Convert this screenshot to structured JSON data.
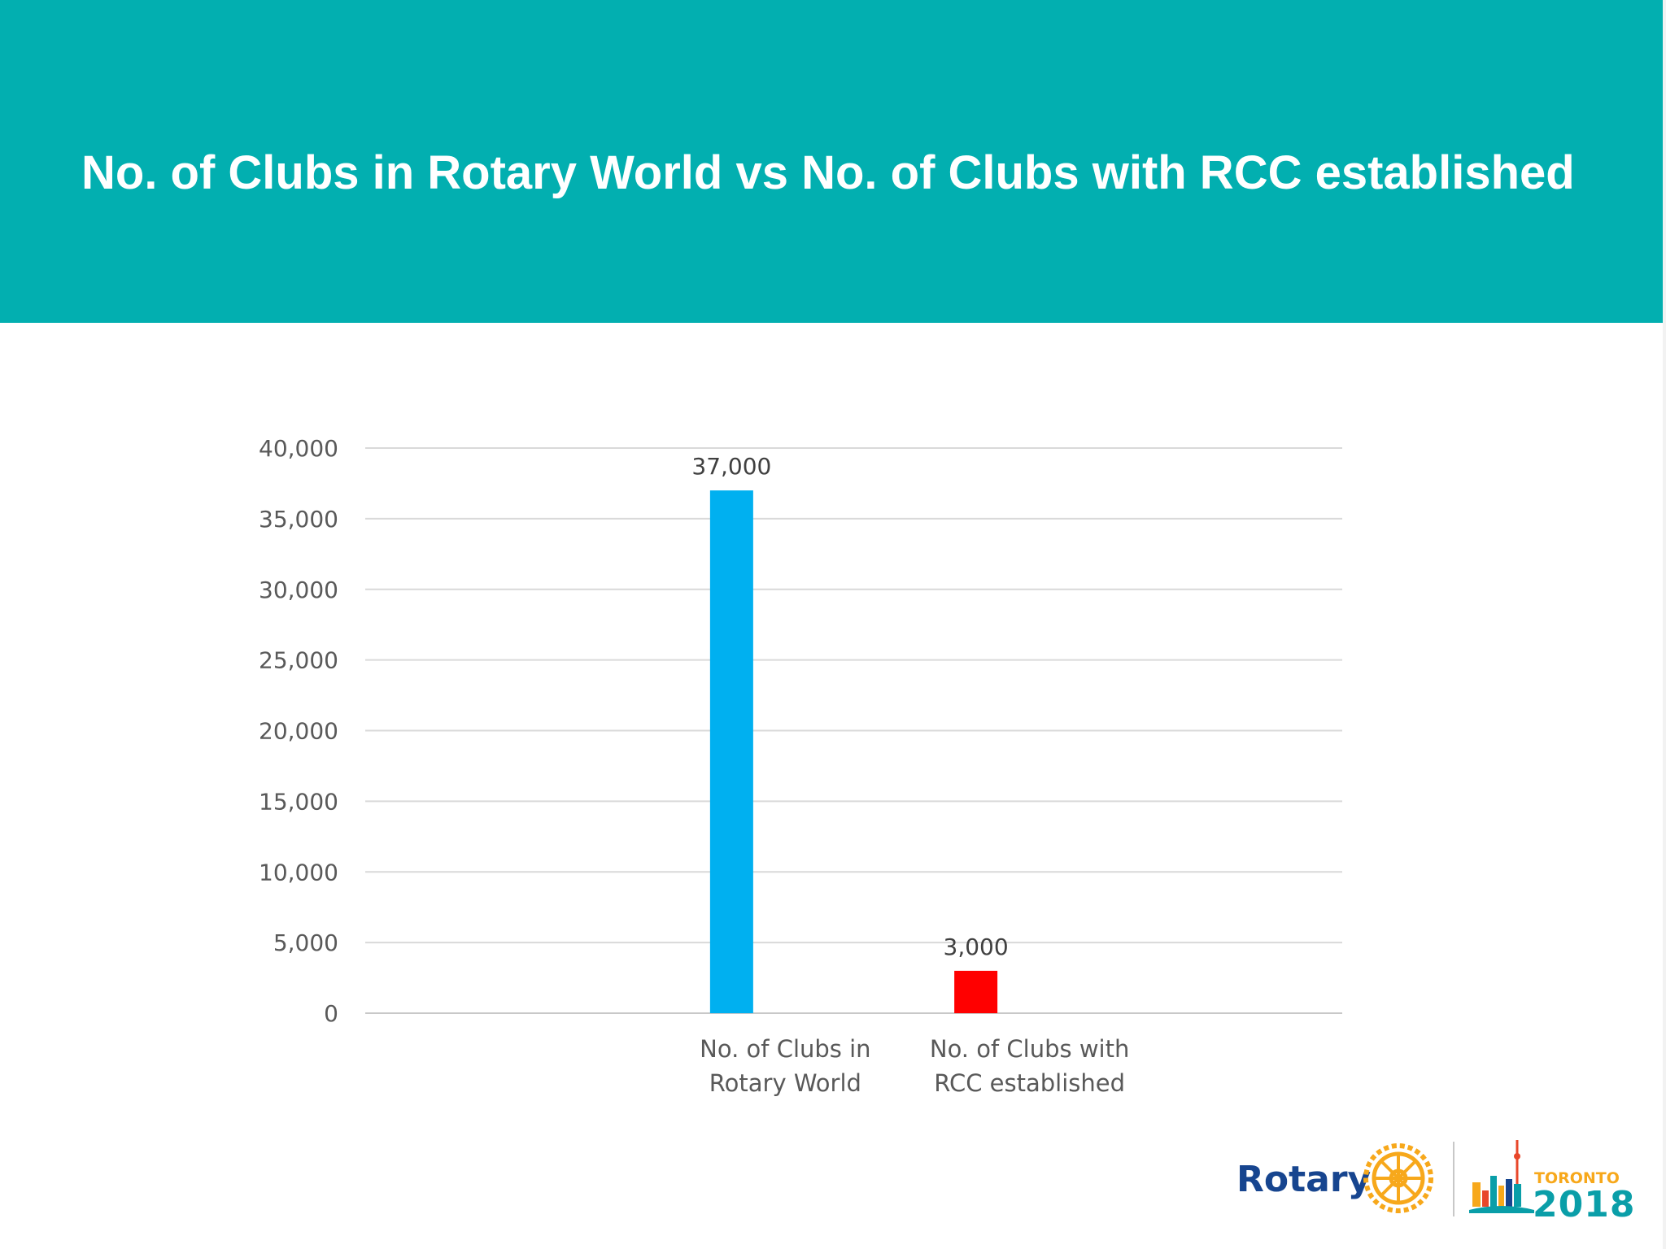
{
  "header": {
    "title": "No. of Clubs in Rotary World vs No. of Clubs with RCC established",
    "background_color": "#02AFB0"
  },
  "chart_data": {
    "type": "bar",
    "title": "",
    "xlabel": "",
    "ylabel": "",
    "ylim": [
      0,
      40000
    ],
    "yticks": [
      0,
      5000,
      10000,
      15000,
      20000,
      25000,
      30000,
      35000,
      40000
    ],
    "ytick_labels": [
      "0",
      "5,000",
      "10,000",
      "15,000",
      "20,000",
      "25,000",
      "30,000",
      "35,000",
      "40,000"
    ],
    "grid": true,
    "legend": "none",
    "categories": [
      [
        "No. of Clubs in",
        "Rotary World"
      ],
      [
        "No. of Clubs with",
        "RCC established"
      ]
    ],
    "values": [
      37000,
      3000
    ],
    "value_labels": [
      "37,000",
      "3,000"
    ],
    "colors": [
      "#00B0F0",
      "#FF0000"
    ]
  },
  "logos": {
    "rotary": "Rotary",
    "toronto": "TORONTO",
    "year": "2018",
    "rotary_color": "#17458F",
    "gold_color": "#F7A81B"
  }
}
